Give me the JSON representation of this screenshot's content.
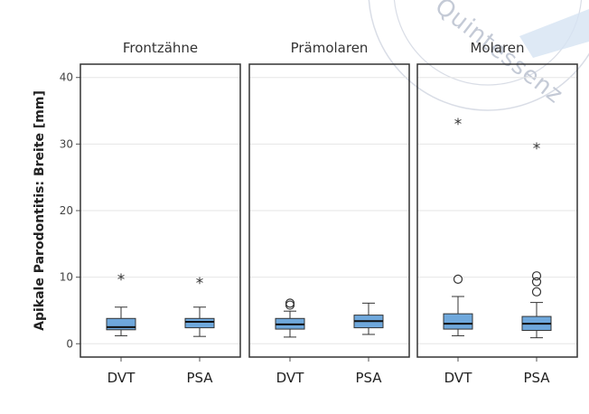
{
  "chart_data": {
    "type": "box",
    "ylabel": "Apikale Parodontitis: Breite [mm]",
    "ylim": [
      -2,
      42
    ],
    "yticks": [
      0,
      10,
      20,
      30,
      40
    ],
    "categories": [
      "DVT",
      "PSA"
    ],
    "box_color": "#6fa8dc",
    "panels": [
      {
        "title": "Frontzähne",
        "boxes": [
          {
            "category": "DVT",
            "whisker_low": 1.2,
            "q1": 2.1,
            "median": 2.5,
            "q3": 3.8,
            "whisker_high": 5.5,
            "outliers": [],
            "extremes": [
              9.8
            ]
          },
          {
            "category": "PSA",
            "whisker_low": 1.1,
            "q1": 2.4,
            "median": 3.3,
            "q3": 3.8,
            "whisker_high": 5.5,
            "outliers": [],
            "extremes": [
              9.3
            ]
          }
        ]
      },
      {
        "title": "Prämolaren",
        "boxes": [
          {
            "category": "DVT",
            "whisker_low": 1.0,
            "q1": 2.2,
            "median": 2.9,
            "q3": 3.8,
            "whisker_high": 4.9,
            "outliers": [
              5.8,
              6.1
            ],
            "extremes": []
          },
          {
            "category": "PSA",
            "whisker_low": 1.4,
            "q1": 2.4,
            "median": 3.4,
            "q3": 4.3,
            "whisker_high": 6.1,
            "outliers": [],
            "extremes": []
          }
        ]
      },
      {
        "title": "Molaren",
        "boxes": [
          {
            "category": "DVT",
            "whisker_low": 1.2,
            "q1": 2.2,
            "median": 3.0,
            "q3": 4.5,
            "whisker_high": 7.1,
            "outliers": [
              9.7
            ],
            "extremes": [
              33.2
            ]
          },
          {
            "category": "PSA",
            "whisker_low": 0.9,
            "q1": 2.0,
            "median": 3.0,
            "q3": 4.1,
            "whisker_high": 6.2,
            "outliers": [
              7.8,
              9.3,
              10.2
            ],
            "extremes": [
              29.5
            ]
          }
        ]
      }
    ]
  },
  "watermark": {
    "text": "Quintessenz"
  }
}
